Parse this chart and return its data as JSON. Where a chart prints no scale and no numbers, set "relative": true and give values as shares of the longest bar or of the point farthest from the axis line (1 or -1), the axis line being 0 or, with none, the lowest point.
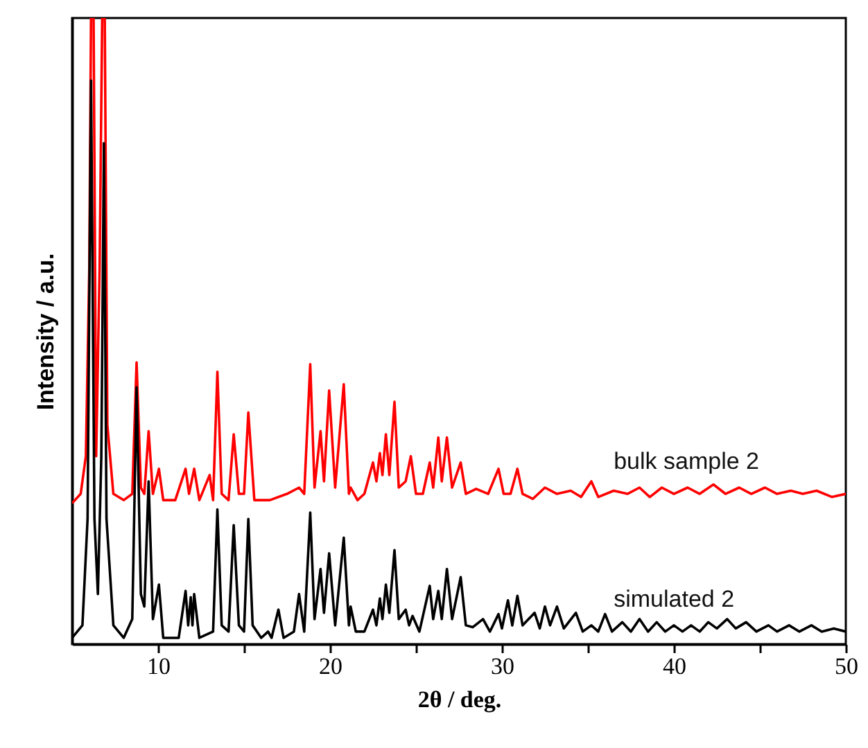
{
  "chart_data": {
    "type": "line",
    "relative": true,
    "xlabel": "2θ / deg.",
    "ylabel": "Intensity / a.u.",
    "xlim": [
      5,
      50
    ],
    "xticks": [
      10,
      {
        "value": 15,
        "label": null
      },
      20,
      {
        "value": 25,
        "label": null
      },
      30,
      {
        "value": 35,
        "label": null
      },
      40,
      {
        "value": 45,
        "label": null
      },
      50
    ],
    "grid": false,
    "marker": "none",
    "line_style": "solid",
    "series": [
      {
        "name": "bulk sample 2",
        "color": "#ff0000",
        "x": [
          5,
          5.5,
          5.8,
          6.0,
          6.1,
          6.25,
          6.4,
          6.6,
          6.75,
          6.9,
          7.05,
          7.4,
          8,
          8.5,
          8.75,
          9.0,
          9.2,
          9.45,
          9.7,
          10.05,
          10.3,
          11.0,
          11.6,
          11.8,
          12.1,
          12.4,
          13.0,
          13.2,
          13.45,
          13.7,
          14.1,
          14.4,
          14.7,
          15.0,
          15.25,
          15.6,
          16.5,
          17.5,
          18.2,
          18.5,
          18.85,
          19.1,
          19.45,
          19.65,
          19.95,
          20.3,
          20.8,
          21.1,
          21.2,
          21.6,
          22.0,
          22.5,
          22.7,
          22.9,
          23.05,
          23.25,
          23.45,
          23.75,
          24.0,
          24.4,
          24.7,
          25.0,
          25.4,
          25.8,
          26.0,
          26.3,
          26.5,
          26.8,
          27.1,
          27.6,
          27.9,
          28.5,
          29.2,
          29.8,
          30.1,
          30.5,
          30.9,
          31.2,
          31.8,
          32.5,
          33.2,
          34,
          34.6,
          35.2,
          35.6,
          36.5,
          37.3,
          38,
          38.6,
          39.3,
          40,
          40.8,
          41.5,
          42.3,
          43,
          43.8,
          44.5,
          45.3,
          46,
          46.8,
          47.5,
          48.3,
          49.2,
          50
        ],
        "values": [
          0.225,
          0.24,
          0.3,
          0.6,
          1,
          1,
          0.3,
          0.6,
          1,
          1,
          0.35,
          0.24,
          0.23,
          0.24,
          0.45,
          0.25,
          0.24,
          0.34,
          0.24,
          0.28,
          0.23,
          0.23,
          0.28,
          0.24,
          0.28,
          0.23,
          0.27,
          0.23,
          0.435,
          0.24,
          0.23,
          0.335,
          0.24,
          0.24,
          0.37,
          0.23,
          0.23,
          0.24,
          0.25,
          0.24,
          0.447,
          0.25,
          0.34,
          0.26,
          0.405,
          0.25,
          0.415,
          0.24,
          0.25,
          0.23,
          0.24,
          0.29,
          0.26,
          0.305,
          0.27,
          0.335,
          0.27,
          0.387,
          0.25,
          0.26,
          0.3,
          0.24,
          0.24,
          0.29,
          0.25,
          0.33,
          0.26,
          0.33,
          0.25,
          0.29,
          0.24,
          0.248,
          0.24,
          0.28,
          0.24,
          0.24,
          0.28,
          0.24,
          0.232,
          0.25,
          0.24,
          0.245,
          0.235,
          0.26,
          0.235,
          0.245,
          0.24,
          0.25,
          0.235,
          0.25,
          0.24,
          0.25,
          0.24,
          0.255,
          0.24,
          0.25,
          0.24,
          0.25,
          0.24,
          0.245,
          0.24,
          0.245,
          0.235,
          0.24
        ]
      },
      {
        "name": "simulated 2",
        "color": "#000000",
        "x": [
          5,
          5.6,
          5.9,
          6.1,
          6.3,
          6.5,
          6.7,
          6.85,
          7.0,
          7.4,
          8,
          8.5,
          8.75,
          9.0,
          9.2,
          9.45,
          9.7,
          10.05,
          10.3,
          11.2,
          11.6,
          11.75,
          11.9,
          12.0,
          12.1,
          12.4,
          13.2,
          13.45,
          13.7,
          14.1,
          14.4,
          14.7,
          15.0,
          15.25,
          15.5,
          16.0,
          16.4,
          16.6,
          17.0,
          17.3,
          17.9,
          18.2,
          18.5,
          18.85,
          19.1,
          19.45,
          19.65,
          19.95,
          20.3,
          20.8,
          21.1,
          21.2,
          21.5,
          22.0,
          22.5,
          22.7,
          22.9,
          23.05,
          23.25,
          23.45,
          23.75,
          24.0,
          24.4,
          24.6,
          24.8,
          25.2,
          25.8,
          26.0,
          26.3,
          26.5,
          26.8,
          27.1,
          27.6,
          27.9,
          28.3,
          28.9,
          29.3,
          29.8,
          30.0,
          30.35,
          30.6,
          30.9,
          31.2,
          31.9,
          32.2,
          32.5,
          32.8,
          33.2,
          33.6,
          34.3,
          34.7,
          35.2,
          35.6,
          36.0,
          36.4,
          37,
          37.5,
          38,
          38.5,
          39,
          39.5,
          40,
          40.5,
          41,
          41.5,
          42,
          42.5,
          43.1,
          43.6,
          44.2,
          44.8,
          45.5,
          46,
          46.7,
          47.3,
          48,
          48.6,
          49.3,
          50
        ],
        "values": [
          0.01,
          0.03,
          0.2,
          0.9,
          0.2,
          0.08,
          0.3,
          0.8,
          0.2,
          0.03,
          0.01,
          0.04,
          0.41,
          0.08,
          0.06,
          0.26,
          0.04,
          0.095,
          0.01,
          0.01,
          0.085,
          0.03,
          0.075,
          0.03,
          0.08,
          0.01,
          0.02,
          0.215,
          0.03,
          0.02,
          0.19,
          0.03,
          0.02,
          0.2,
          0.03,
          0.01,
          0.02,
          0.01,
          0.055,
          0.01,
          0.02,
          0.08,
          0.02,
          0.21,
          0.04,
          0.12,
          0.05,
          0.145,
          0.03,
          0.17,
          0.03,
          0.06,
          0.02,
          0.02,
          0.055,
          0.03,
          0.073,
          0.04,
          0.095,
          0.05,
          0.15,
          0.04,
          0.055,
          0.03,
          0.045,
          0.02,
          0.093,
          0.04,
          0.085,
          0.04,
          0.12,
          0.04,
          0.107,
          0.03,
          0.027,
          0.04,
          0.02,
          0.048,
          0.025,
          0.07,
          0.03,
          0.077,
          0.03,
          0.05,
          0.025,
          0.06,
          0.03,
          0.06,
          0.025,
          0.05,
          0.02,
          0.03,
          0.02,
          0.048,
          0.02,
          0.035,
          0.02,
          0.04,
          0.02,
          0.035,
          0.02,
          0.03,
          0.02,
          0.03,
          0.02,
          0.035,
          0.025,
          0.04,
          0.025,
          0.035,
          0.02,
          0.03,
          0.02,
          0.03,
          0.02,
          0.03,
          0.02,
          0.025,
          0.02
        ]
      }
    ]
  }
}
